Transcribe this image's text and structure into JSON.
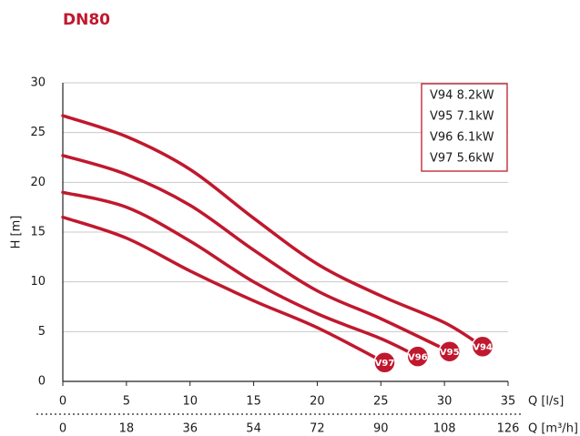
{
  "chart_data": {
    "type": "line",
    "title": "DN80",
    "ylabel": "H [m]",
    "xlabel": "Q [l/s]",
    "x2label": "Q [m³/h]",
    "xlim": [
      0,
      35
    ],
    "xticks": [
      0,
      5,
      10,
      15,
      20,
      25,
      30,
      35
    ],
    "x2lim": [
      0,
      126
    ],
    "x2ticks": [
      0,
      18,
      36,
      54,
      72,
      90,
      108,
      126
    ],
    "ylim": [
      0,
      30
    ],
    "yticks": [
      0,
      5,
      10,
      15,
      20,
      25,
      30
    ],
    "grid": true,
    "legend": "upper right",
    "series": [
      {
        "name": "V94 8.2kW",
        "end_label": "V94",
        "color": "#c0182e",
        "x": [
          0,
          5,
          10,
          15,
          20,
          25,
          30,
          33
        ],
        "values": [
          26.7,
          24.6,
          21.3,
          16.4,
          11.8,
          8.6,
          5.9,
          3.5
        ]
      },
      {
        "name": "V95 7.1kW",
        "end_label": "V95",
        "color": "#c0182e",
        "x": [
          0,
          5,
          10,
          15,
          20,
          25,
          30.4
        ],
        "values": [
          22.7,
          20.8,
          17.7,
          13.2,
          9.1,
          6.3,
          3.0
        ]
      },
      {
        "name": "V96 6.1kW",
        "end_label": "V96",
        "color": "#c0182e",
        "x": [
          0,
          5,
          10,
          15,
          20,
          25,
          27.9
        ],
        "values": [
          19.0,
          17.5,
          14.1,
          10.0,
          6.8,
          4.3,
          2.5
        ]
      },
      {
        "name": "V97 5.6kW",
        "end_label": "V97",
        "color": "#c0182e",
        "x": [
          0,
          5,
          10,
          15,
          20,
          25.3
        ],
        "values": [
          16.5,
          14.4,
          11.1,
          8.1,
          5.4,
          1.9
        ]
      }
    ]
  }
}
